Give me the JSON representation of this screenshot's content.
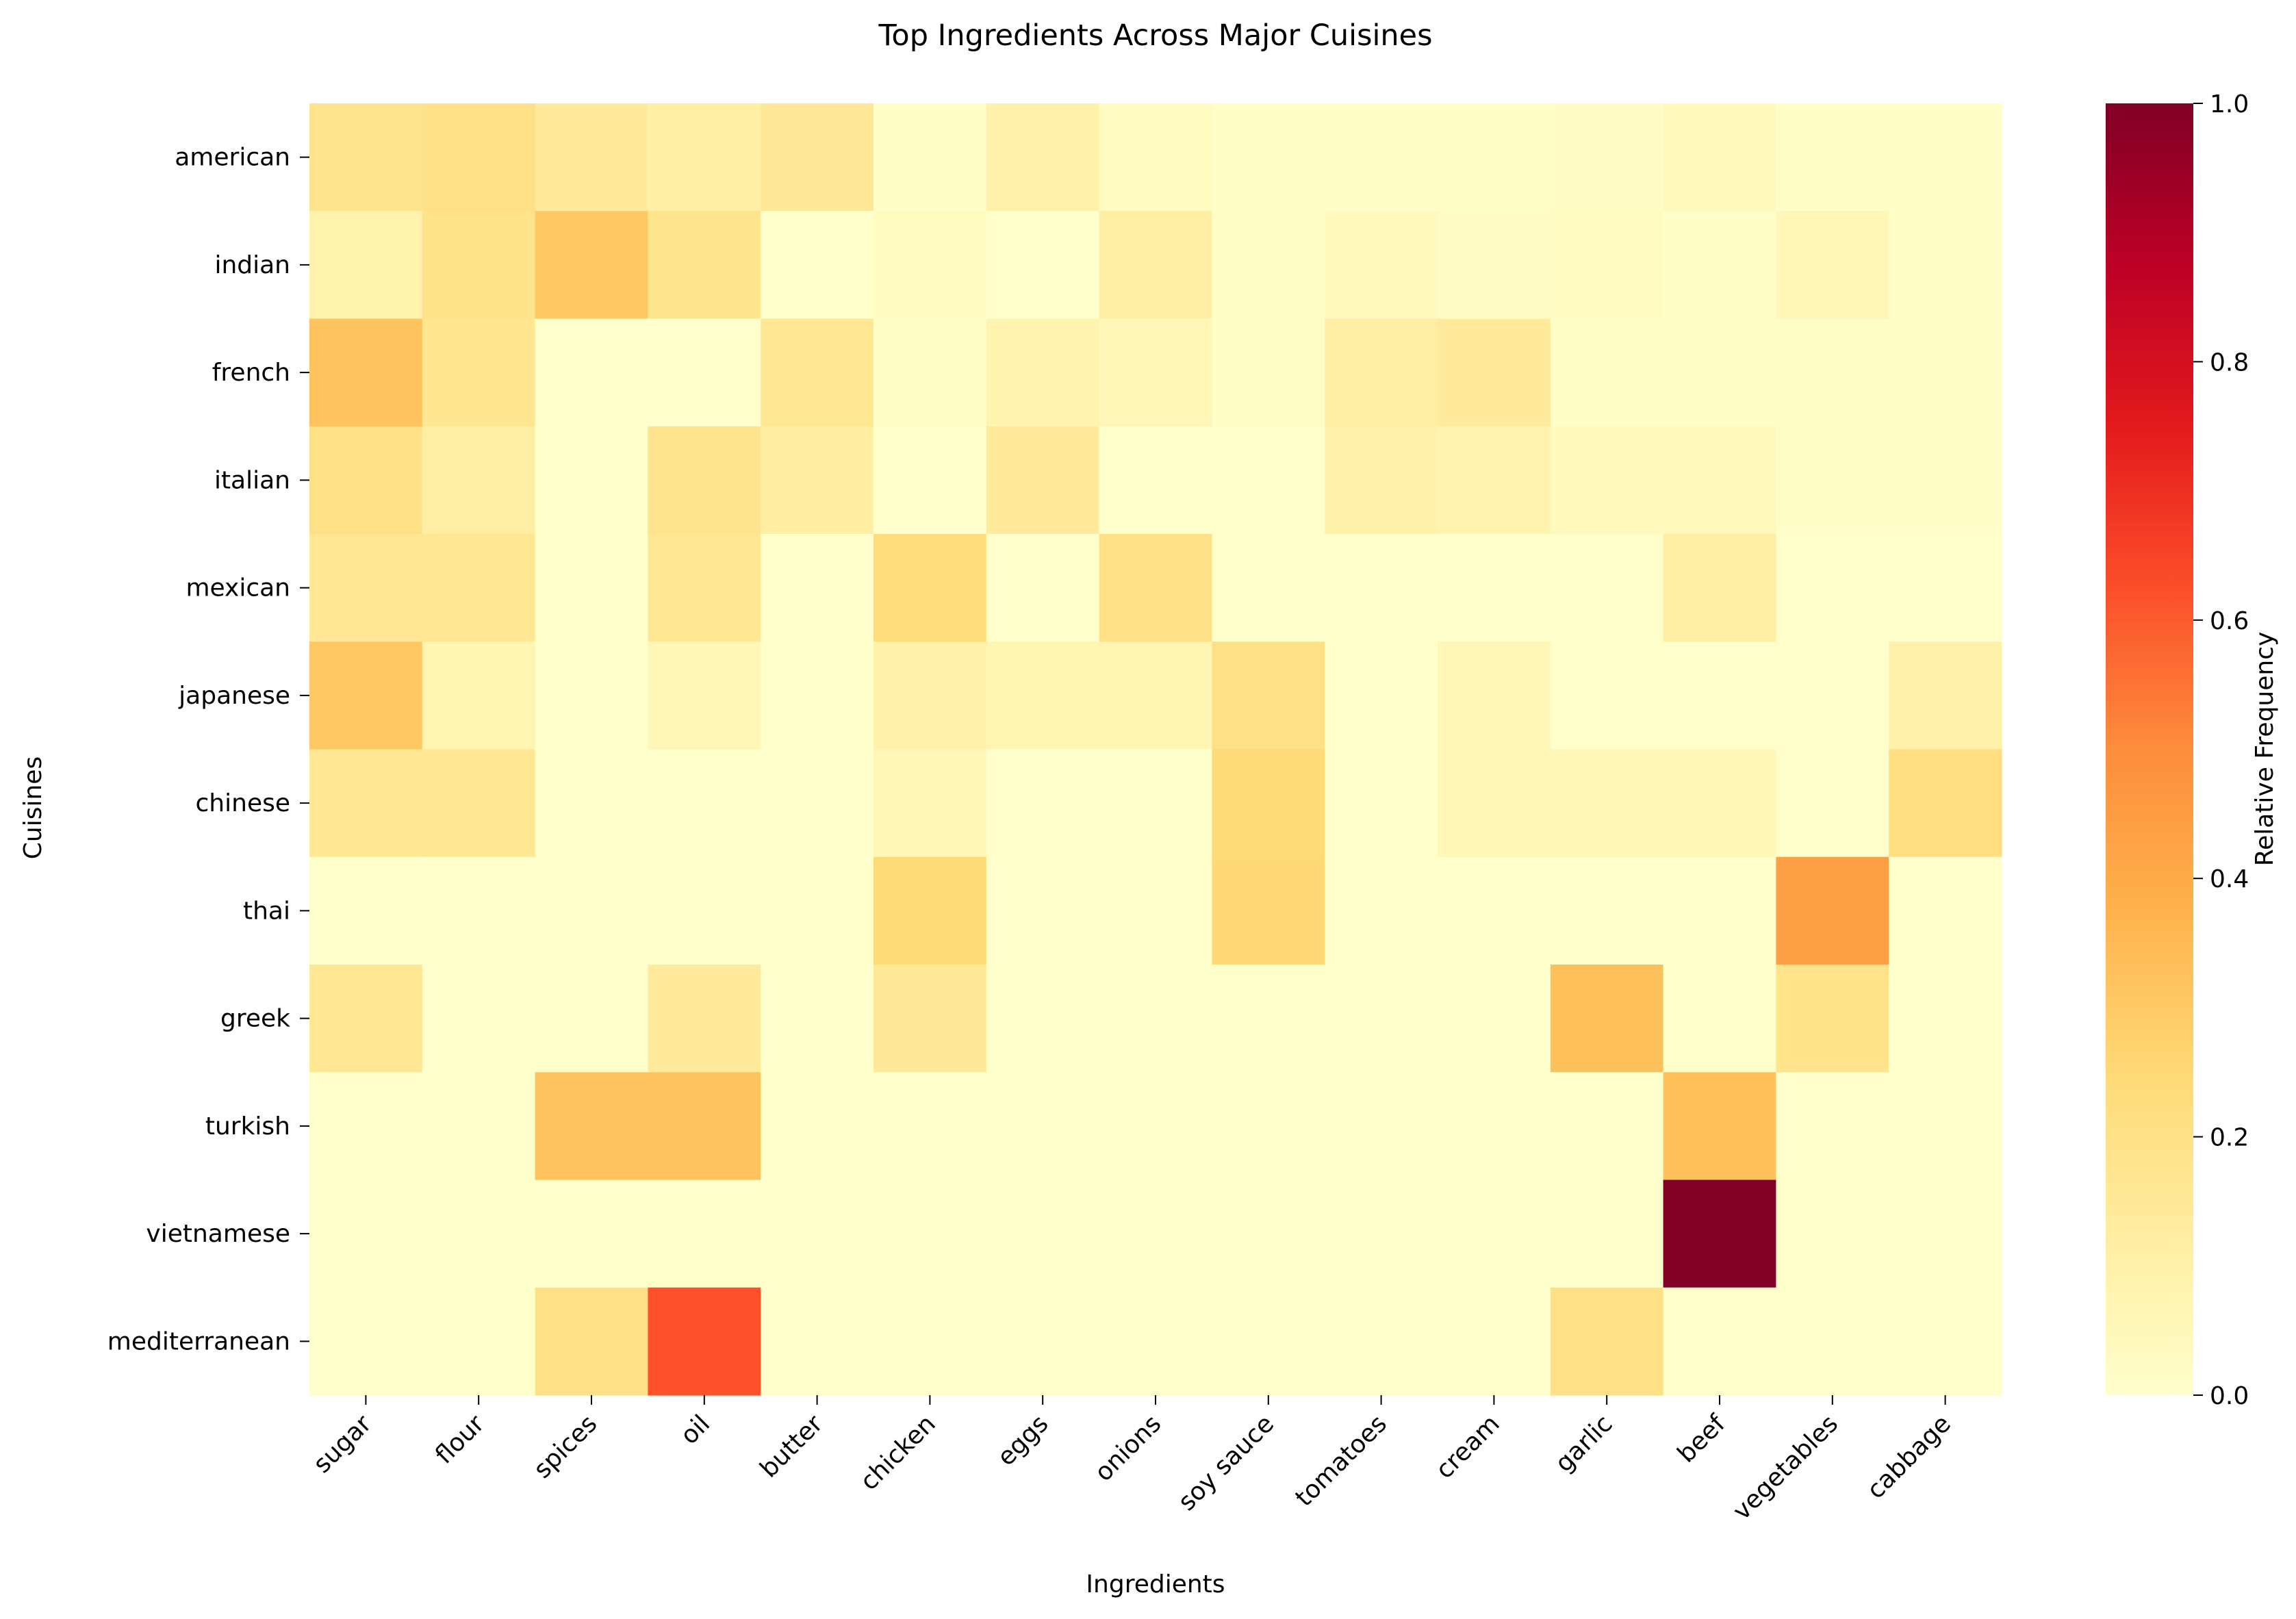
{
  "chart_data": {
    "type": "heatmap",
    "title": "Top Ingredients Across Major Cuisines",
    "xlabel": "Ingredients",
    "ylabel": "Cuisines",
    "x_categories": [
      "sugar",
      "flour",
      "spices",
      "oil",
      "butter",
      "chicken",
      "eggs",
      "onions",
      "soy sauce",
      "tomatoes",
      "cream",
      "garlic",
      "beef",
      "vegetables",
      "cabbage"
    ],
    "y_categories": [
      "american",
      "indian",
      "french",
      "italian",
      "mexican",
      "japanese",
      "chinese",
      "thai",
      "greek",
      "turkish",
      "vietnamese",
      "mediterranean"
    ],
    "values": [
      [
        0.18,
        0.2,
        0.14,
        0.11,
        0.15,
        0.01,
        0.1,
        0.03,
        0.01,
        0.01,
        0.01,
        0.02,
        0.04,
        0.01,
        0.01
      ],
      [
        0.09,
        0.19,
        0.3,
        0.18,
        0.0,
        0.03,
        0.0,
        0.11,
        0.01,
        0.04,
        0.02,
        0.03,
        0.01,
        0.06,
        0.01
      ],
      [
        0.32,
        0.17,
        0.0,
        0.0,
        0.16,
        0.01,
        0.08,
        0.06,
        0.01,
        0.11,
        0.14,
        0.01,
        0.01,
        0.01,
        0.01
      ],
      [
        0.2,
        0.11,
        0.0,
        0.18,
        0.12,
        0.0,
        0.14,
        0.0,
        0.0,
        0.1,
        0.08,
        0.04,
        0.04,
        0.01,
        0.01
      ],
      [
        0.16,
        0.16,
        0.0,
        0.16,
        0.0,
        0.23,
        0.0,
        0.2,
        0.0,
        0.0,
        0.0,
        0.0,
        0.11,
        0.0,
        0.0
      ],
      [
        0.3,
        0.07,
        0.0,
        0.06,
        0.0,
        0.1,
        0.07,
        0.07,
        0.2,
        0.0,
        0.06,
        0.0,
        0.0,
        0.0,
        0.1
      ],
      [
        0.16,
        0.16,
        0.0,
        0.0,
        0.0,
        0.06,
        0.0,
        0.0,
        0.24,
        0.0,
        0.06,
        0.06,
        0.06,
        0.0,
        0.22
      ],
      [
        0.0,
        0.0,
        0.0,
        0.0,
        0.0,
        0.24,
        0.0,
        0.0,
        0.25,
        0.0,
        0.0,
        0.0,
        0.0,
        0.44,
        0.0
      ],
      [
        0.16,
        0.0,
        0.0,
        0.14,
        0.0,
        0.15,
        0.0,
        0.0,
        0.0,
        0.0,
        0.0,
        0.33,
        0.0,
        0.19,
        0.0
      ],
      [
        0.0,
        0.0,
        0.32,
        0.32,
        0.0,
        0.0,
        0.0,
        0.0,
        0.0,
        0.0,
        0.0,
        0.0,
        0.33,
        0.0,
        0.0
      ],
      [
        0.0,
        0.0,
        0.0,
        0.0,
        0.0,
        0.0,
        0.0,
        0.0,
        0.0,
        0.0,
        0.0,
        0.0,
        1.0,
        0.0,
        0.0
      ],
      [
        0.0,
        0.0,
        0.2,
        0.62,
        0.0,
        0.0,
        0.0,
        0.0,
        0.0,
        0.0,
        0.0,
        0.2,
        0.0,
        0.0,
        0.0
      ]
    ],
    "colormap": "YlOrRd",
    "colorbar": {
      "label": "Relative Frequency",
      "range": [
        0.0,
        1.0
      ],
      "ticks": [
        "0.0",
        "0.2",
        "0.4",
        "0.6",
        "0.8",
        "1.0"
      ],
      "colors": [
        "#ffffcc",
        "#ffeda0",
        "#fed976",
        "#feb24c",
        "#fd8d3c",
        "#fc4e2a",
        "#e31a1c",
        "#bd0026",
        "#800026"
      ]
    }
  }
}
